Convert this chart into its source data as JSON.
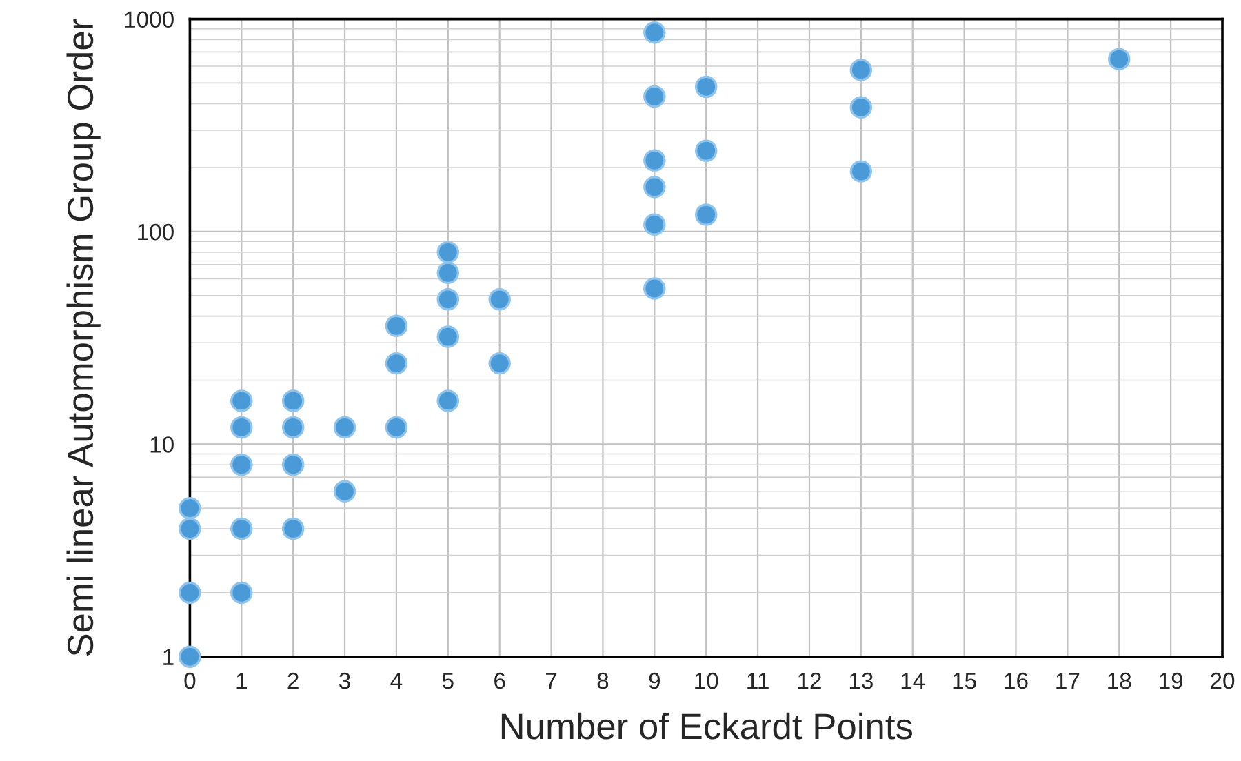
{
  "chart_data": {
    "type": "scatter",
    "xlabel": "Number of Eckardt Points",
    "ylabel": "Semi linear Automorphism Group Order",
    "x": [
      0,
      0,
      0,
      0,
      1,
      1,
      1,
      1,
      1,
      2,
      2,
      2,
      2,
      3,
      3,
      4,
      4,
      4,
      5,
      5,
      5,
      5,
      5,
      6,
      6,
      9,
      9,
      9,
      9,
      9,
      9,
      10,
      10,
      10,
      13,
      13,
      13,
      18
    ],
    "values": [
      1,
      2,
      4,
      5,
      2,
      4,
      8,
      12,
      16,
      4,
      8,
      12,
      16,
      6,
      12,
      12,
      24,
      36,
      16,
      32,
      48,
      64,
      80,
      24,
      48,
      54,
      108,
      162,
      216,
      432,
      864,
      120,
      240,
      480,
      192,
      384,
      576,
      648
    ],
    "color": "#4a9ad8",
    "marker": "circle",
    "log": "y",
    "xlim": [
      0,
      20
    ],
    "xticks": [
      0,
      1,
      2,
      3,
      4,
      5,
      6,
      7,
      8,
      9,
      10,
      11,
      12,
      13,
      14,
      15,
      16,
      17,
      18,
      19,
      20
    ],
    "ylim": [
      1,
      1000
    ],
    "yticks": [
      1,
      10,
      100,
      1000
    ],
    "grid": true
  }
}
